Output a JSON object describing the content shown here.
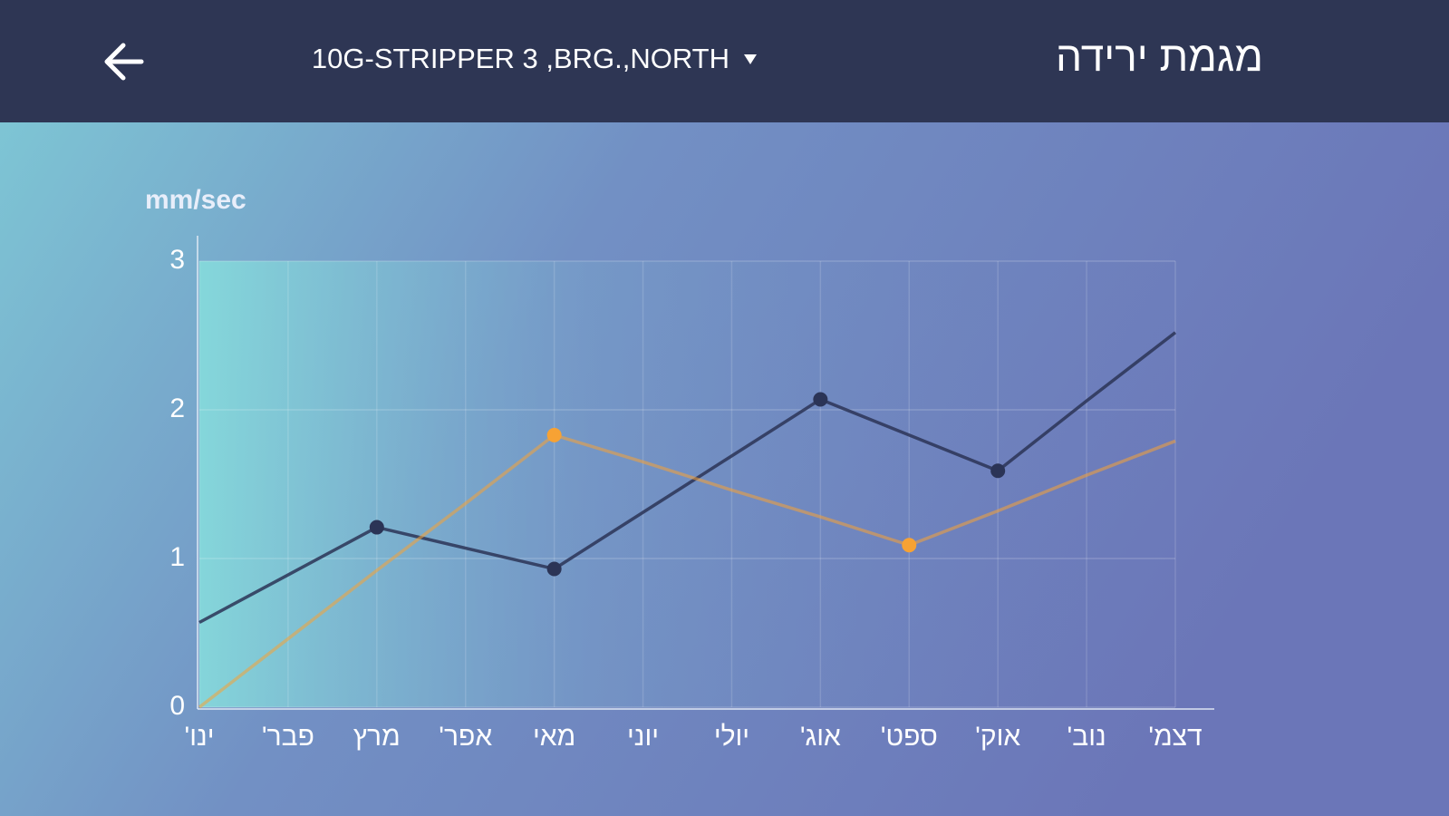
{
  "header": {
    "title": "מגמת ירידה",
    "selector": "10G-STRIPPER 3 ,BRG.,NORTH"
  },
  "chart_data": {
    "type": "line",
    "y_label": "mm/sec",
    "categories": [
      "ינו'",
      "פבר'",
      "מרץ",
      "אפר'",
      "מאי",
      "יוני",
      "יולי",
      "אוג'",
      "ספט'",
      "אוק'",
      "נוב'",
      "דצמ'"
    ],
    "series": [
      {
        "color": "#2b3456",
        "values": [
          0.57,
          0.89,
          1.21,
          1.07,
          0.93,
          1.31,
          1.69,
          2.07,
          1.83,
          1.59,
          2.06,
          2.52
        ]
      },
      {
        "color": "#f7a234",
        "values": [
          0,
          0.46,
          0.92,
          1.37,
          1.83,
          1.65,
          1.46,
          1.28,
          1.09,
          1.32,
          1.56,
          1.79
        ]
      }
    ],
    "ylim": [
      0,
      3
    ],
    "yticks": [
      0,
      1,
      2,
      3
    ],
    "grid": true
  }
}
